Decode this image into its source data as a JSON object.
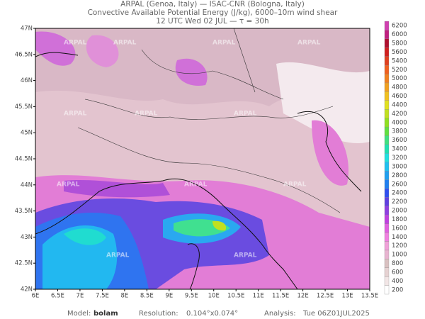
{
  "header": {
    "lines": [
      "ARPAL (Genoa, Italy)  —  ISAC-CNR (Bologna, Italy)",
      "Convective Available Potential Energy (J/kg), 6000–10m wind shear",
      "12 UTC Wed 02 JUL  —  τ = 30h"
    ]
  },
  "map": {
    "x_ticks": [
      "6E",
      "6.5E",
      "7E",
      "7.5E",
      "8E",
      "8.5E",
      "9E",
      "9.5E",
      "10E",
      "10.5E",
      "11E",
      "11.5E",
      "12E",
      "12.5E",
      "13E",
      "13.5E"
    ],
    "y_ticks": [
      "42N",
      "42.5N",
      "43N",
      "43.5N",
      "44N",
      "44.5N",
      "45N",
      "45.5N",
      "46N",
      "46.5N",
      "47N"
    ],
    "watermark": "ARPAL"
  },
  "colorbar": {
    "levels": [
      200,
      400,
      600,
      800,
      1000,
      1200,
      1400,
      1600,
      1800,
      2000,
      2200,
      2400,
      2600,
      2800,
      3000,
      3200,
      3400,
      3600,
      3800,
      4000,
      4200,
      4400,
      4600,
      4800,
      5000,
      5200,
      5400,
      5600,
      5800,
      6000,
      6200
    ],
    "colors": [
      "#ffffff",
      "#f2e6e6",
      "#e6d2d2",
      "#d9c0c0",
      "#e8b4d0",
      "#f0a0d8",
      "#f080e0",
      "#e060e0",
      "#c040e0",
      "#9040e0",
      "#6040e0",
      "#3050f0",
      "#2080f0",
      "#20a0f0",
      "#20c0f0",
      "#20e0e0",
      "#20e0b0",
      "#40e080",
      "#60e040",
      "#90e020",
      "#c0e020",
      "#e0e020",
      "#f0c020",
      "#f0a020",
      "#f08020",
      "#f06020",
      "#e04020",
      "#d02020",
      "#b01030",
      "#c02080",
      "#d040b0"
    ]
  },
  "footer": {
    "model_label": "Model:",
    "model": "bolam",
    "resolution_label": "Resolution:",
    "resolution": "0.104°x0.074°",
    "analysis_label": "Analysis:",
    "analysis": "Tue 06Z01JUL2025"
  }
}
